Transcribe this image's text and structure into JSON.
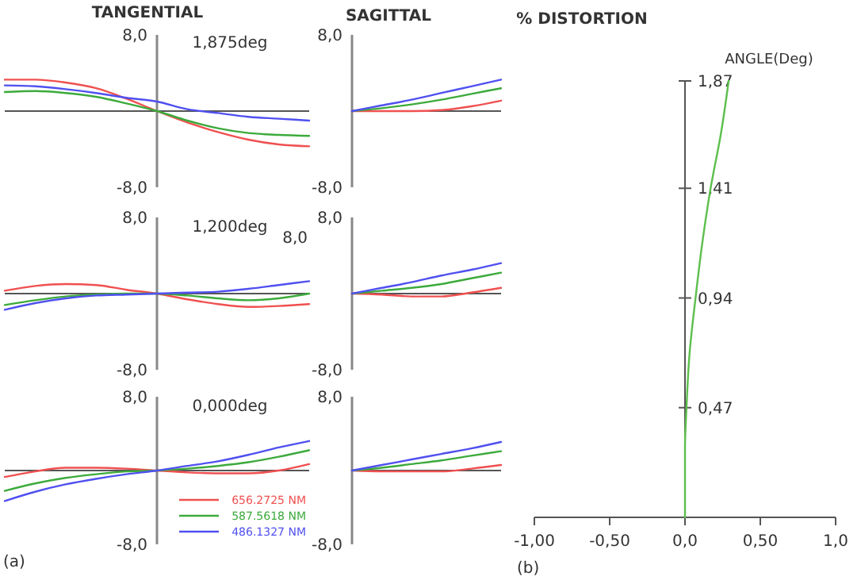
{
  "chart_data": [
    {
      "type": "line",
      "title": "TANGENTIAL",
      "annotations": [
        "1,875deg"
      ],
      "categories": [
        null,
        null,
        null,
        null,
        null,
        null,
        null,
        null,
        null,
        null,
        null
      ],
      "ylim": [
        -8,
        8
      ],
      "yticks": [
        {
          "value": 8,
          "label": "8,0"
        },
        {
          "value": -8,
          "label": "-8,0"
        }
      ],
      "tick_labels": "y",
      "series": [
        {
          "color": "#f05050",
          "values": [
            3.3,
            3.3,
            3.0,
            2.4,
            1.3,
            0,
            -1.2,
            -2.2,
            -3.0,
            -3.5,
            -3.7
          ]
        },
        {
          "color": "#3caa3c",
          "values": [
            2.0,
            2.1,
            1.9,
            1.5,
            0.8,
            0,
            -1.0,
            -1.8,
            -2.3,
            -2.5,
            -2.6
          ]
        },
        {
          "color": "#5050f0",
          "values": [
            2.7,
            2.6,
            2.3,
            1.9,
            1.4,
            1.0,
            0.2,
            -0.2,
            -0.6,
            -0.8,
            -1.0
          ]
        }
      ]
    },
    {
      "type": "line",
      "title": "SAGITTAL",
      "categories": [
        null,
        null,
        null,
        null,
        null,
        null
      ],
      "ylim": [
        -8,
        8
      ],
      "yticks": [
        {
          "value": 8,
          "label": "8,0"
        },
        {
          "value": -8,
          "label": "-8,0"
        }
      ],
      "tick_labels": "y",
      "series": [
        {
          "color": "#f05050",
          "values": [
            0,
            0,
            0,
            0.1,
            0.5,
            1.1
          ]
        },
        {
          "color": "#3caa3c",
          "values": [
            0,
            0.3,
            0.7,
            1.2,
            1.8,
            2.4
          ]
        },
        {
          "color": "#5050f0",
          "values": [
            0,
            0.6,
            1.2,
            1.9,
            2.6,
            3.3
          ]
        }
      ]
    },
    {
      "type": "line",
      "annotations": [
        "1,200deg",
        "8,0"
      ],
      "categories": [
        null,
        null,
        null,
        null,
        null,
        null,
        null,
        null,
        null,
        null,
        null
      ],
      "ylim": [
        -8,
        8
      ],
      "yticks": [
        {
          "value": 8,
          "label": "8,0"
        },
        {
          "value": -8,
          "label": "-8,0"
        }
      ],
      "tick_labels": "y",
      "series": [
        {
          "color": "#f05050",
          "values": [
            0.3,
            0.8,
            1.0,
            0.9,
            0.4,
            0,
            -0.6,
            -1.1,
            -1.4,
            -1.3,
            -1.1
          ]
        },
        {
          "color": "#3caa3c",
          "values": [
            -1.2,
            -0.7,
            -0.3,
            -0.1,
            0,
            0,
            -0.2,
            -0.5,
            -0.7,
            -0.5,
            0
          ]
        },
        {
          "color": "#5050f0",
          "values": [
            -1.7,
            -1.0,
            -0.5,
            -0.2,
            -0.1,
            0,
            0.1,
            0.2,
            0.5,
            0.9,
            1.3
          ]
        }
      ]
    },
    {
      "type": "line",
      "categories": [
        null,
        null,
        null,
        null,
        null,
        null
      ],
      "ylim": [
        -8,
        8
      ],
      "yticks": [
        {
          "value": 8,
          "label": "8,0"
        },
        {
          "value": -8,
          "label": "-8,0"
        }
      ],
      "tick_labels": "y",
      "series": [
        {
          "color": "#f05050",
          "values": [
            0,
            -0.1,
            -0.3,
            -0.3,
            0.1,
            0.6
          ]
        },
        {
          "color": "#3caa3c",
          "values": [
            0,
            0.3,
            0.6,
            1.0,
            1.6,
            2.2
          ]
        },
        {
          "color": "#5050f0",
          "values": [
            0,
            0.6,
            1.2,
            1.9,
            2.5,
            3.2
          ]
        }
      ]
    },
    {
      "type": "line",
      "annotations": [
        "0,000deg",
        "(a)"
      ],
      "legend": "bottom right",
      "categories": [
        null,
        null,
        null,
        null,
        null,
        null,
        null,
        null,
        null,
        null,
        null
      ],
      "ylim": [
        -8,
        8
      ],
      "yticks": [
        {
          "value": 8,
          "label": "8,0"
        },
        {
          "value": -8,
          "label": "-8,0"
        }
      ],
      "tick_labels": "y",
      "series": [
        {
          "name": "656.2725 NM",
          "color": "#f05050",
          "values": [
            -0.7,
            -0.1,
            0.3,
            0.3,
            0.2,
            0,
            -0.2,
            -0.3,
            -0.3,
            0,
            0.7
          ]
        },
        {
          "name": "587.5618 NM",
          "color": "#3caa3c",
          "values": [
            -2.2,
            -1.4,
            -0.8,
            -0.4,
            -0.1,
            0,
            0.2,
            0.5,
            0.9,
            1.5,
            2.2
          ]
        },
        {
          "name": "486.1327 NM",
          "color": "#5050f0",
          "values": [
            -3.3,
            -2.3,
            -1.5,
            -0.9,
            -0.4,
            0,
            0.5,
            1.0,
            1.7,
            2.5,
            3.2
          ]
        }
      ]
    },
    {
      "type": "line",
      "categories": [
        null,
        null,
        null,
        null,
        null,
        null
      ],
      "ylim": [
        -8,
        8
      ],
      "yticks": [
        {
          "value": 8,
          "label": "8,0"
        },
        {
          "value": -8,
          "label": "-8,0"
        }
      ],
      "tick_labels": "y",
      "series": [
        {
          "color": "#f05050",
          "values": [
            0,
            -0.1,
            -0.1,
            -0.1,
            0.2,
            0.6
          ]
        },
        {
          "color": "#3caa3c",
          "values": [
            0,
            0.3,
            0.7,
            1.1,
            1.6,
            2.1
          ]
        },
        {
          "color": "#5050f0",
          "values": [
            0,
            0.6,
            1.2,
            1.8,
            2.4,
            3.1
          ]
        }
      ]
    },
    {
      "type": "line",
      "title": "% DISTORTION",
      "ylabel": "ANGLE(Deg)",
      "annotations": [
        "(b)"
      ],
      "xlim": [
        -1,
        1
      ],
      "ylim": [
        0,
        1.87
      ],
      "xticks": [
        {
          "value": -1,
          "label": "-1,00"
        },
        {
          "value": -0.5,
          "label": "-0,50"
        },
        {
          "value": 0,
          "label": "0,0"
        },
        {
          "value": 0.5,
          "label": "0,50"
        },
        {
          "value": 1,
          "label": "1,0"
        }
      ],
      "yticks": [
        {
          "value": 0.47,
          "label": "0,47"
        },
        {
          "value": 0.94,
          "label": "0,94"
        },
        {
          "value": 1.41,
          "label": "1,41"
        },
        {
          "value": 1.87,
          "label": "1,87"
        }
      ],
      "series": [
        {
          "color": "#5cbf4c",
          "x": [
            0,
            0,
            0.01,
            0.03,
            0.07,
            0.12,
            0.17,
            0.24,
            0.29
          ],
          "values": [
            0,
            0.3,
            0.47,
            0.7,
            0.94,
            1.2,
            1.41,
            1.65,
            1.87
          ]
        }
      ]
    }
  ]
}
